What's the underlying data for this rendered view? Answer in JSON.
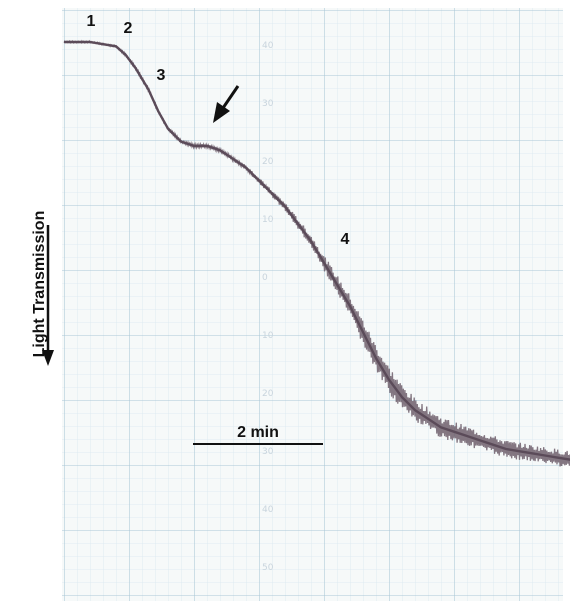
{
  "chart_data": {
    "type": "line",
    "title": "",
    "xlabel": "",
    "ylabel": "Light Transmission",
    "scale_bar": {
      "label": "2 min",
      "minutes": 2
    },
    "grid": true,
    "colors": {
      "trace": "#6f5f6c",
      "grid_minor": "#d6e6ee",
      "grid_major": "#aac7d6",
      "paper": "#f6f9f9",
      "ink": "#111111"
    },
    "phase_labels": [
      {
        "text": "1",
        "minute": 0.3,
        "level": 1.0
      },
      {
        "text": "2",
        "minute": 0.6,
        "level": 1.0
      },
      {
        "text": "3",
        "minute": 0.95,
        "level": 0.85
      },
      {
        "text": "4",
        "minute": 4.4,
        "level": 0.55
      }
    ],
    "arrow_annotation": {
      "minute": 2.4,
      "level": 0.79
    },
    "paper_numbers": [
      "40",
      "30",
      "20",
      "10",
      "0",
      "10",
      "20",
      "30",
      "40",
      "50"
    ],
    "trace": {
      "name": "",
      "x_minutes": [
        0.0,
        0.4,
        0.8,
        0.95,
        1.1,
        1.3,
        1.45,
        1.6,
        1.8,
        2.0,
        2.2,
        2.4,
        2.6,
        2.8,
        3.0,
        3.2,
        3.4,
        3.6,
        3.8,
        4.0,
        4.2,
        4.4,
        4.6,
        4.8,
        5.0,
        5.2,
        5.4,
        5.6,
        5.8,
        6.0,
        6.2,
        6.4,
        6.6,
        6.8,
        7.0,
        7.2,
        7.4,
        7.6,
        7.8
      ],
      "y_transmission": [
        0.0,
        0.0,
        0.01,
        0.03,
        0.06,
        0.11,
        0.16,
        0.2,
        0.23,
        0.24,
        0.24,
        0.25,
        0.27,
        0.29,
        0.32,
        0.35,
        0.38,
        0.42,
        0.46,
        0.51,
        0.56,
        0.61,
        0.67,
        0.73,
        0.78,
        0.82,
        0.85,
        0.87,
        0.89,
        0.9,
        0.91,
        0.92,
        0.93,
        0.94,
        0.945,
        0.95,
        0.955,
        0.96,
        0.965
      ],
      "noise": [
        0.002,
        0.002,
        0.002,
        0.003,
        0.004,
        0.004,
        0.004,
        0.004,
        0.004,
        0.004,
        0.004,
        0.005,
        0.005,
        0.006,
        0.007,
        0.008,
        0.01,
        0.012,
        0.015,
        0.018,
        0.022,
        0.026,
        0.03,
        0.032,
        0.032,
        0.03,
        0.028,
        0.026,
        0.025,
        0.024,
        0.023,
        0.022,
        0.022,
        0.021,
        0.02,
        0.02,
        0.02,
        0.02,
        0.02
      ]
    }
  }
}
